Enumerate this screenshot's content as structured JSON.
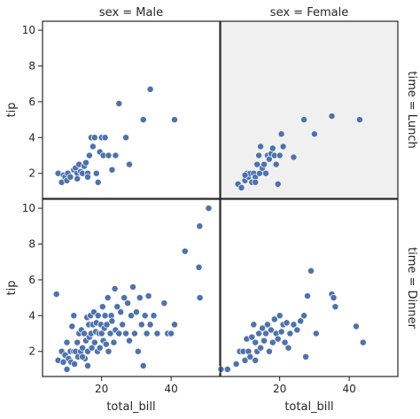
{
  "chart_data": {
    "type": "scatter",
    "xlabel": "total_bill",
    "ylabel": "tip",
    "xlim": [
      3,
      54
    ],
    "ylim": [
      0.6,
      10.5
    ],
    "xticks": [
      20,
      40
    ],
    "yticks": [
      2,
      4,
      6,
      8,
      10
    ],
    "xtick_labels": [
      "20",
      "40"
    ],
    "ytick_labels": [
      "2",
      "4",
      "6",
      "8",
      "10"
    ],
    "col_titles": [
      "sex = Male",
      "sex = Female"
    ],
    "row_titles": [
      "time = Lunch",
      "time = Dinner"
    ],
    "point_color": "#4c72b0",
    "highlight_bg": "#f0f0f0",
    "highlighted_panel": "lunch-female",
    "panels": [
      {
        "id": "lunch-male",
        "row": 0,
        "col": 0,
        "points": [
          [
            7.5,
            2.0
          ],
          [
            8.5,
            1.5
          ],
          [
            9.0,
            1.9
          ],
          [
            9.5,
            1.8
          ],
          [
            10.0,
            1.6
          ],
          [
            10.3,
            2.0
          ],
          [
            11.0,
            1.8
          ],
          [
            12.0,
            2.2
          ],
          [
            12.5,
            2.3
          ],
          [
            13.0,
            2.0
          ],
          [
            13.5,
            2.5
          ],
          [
            14.0,
            2.1
          ],
          [
            14.5,
            2.0
          ],
          [
            15.0,
            2.4
          ],
          [
            15.5,
            2.6
          ],
          [
            16.0,
            2.0
          ],
          [
            16.5,
            3.0
          ],
          [
            17.0,
            4.0
          ],
          [
            17.5,
            3.5
          ],
          [
            18.0,
            4.0
          ],
          [
            18.5,
            2.0
          ],
          [
            19.0,
            1.5
          ],
          [
            19.5,
            3.2
          ],
          [
            20.0,
            4.0
          ],
          [
            20.5,
            3.0
          ],
          [
            21.0,
            4.0
          ],
          [
            22.0,
            3.0
          ],
          [
            23.0,
            2.2
          ],
          [
            24.0,
            3.0
          ],
          [
            25.0,
            5.9
          ],
          [
            27.0,
            4.0
          ],
          [
            28.0,
            2.5
          ],
          [
            32.0,
            5.0
          ],
          [
            34.0,
            6.7
          ],
          [
            41.0,
            5.0
          ],
          [
            16.0,
            1.8
          ],
          [
            13.0,
            1.7
          ]
        ]
      },
      {
        "id": "lunch-female",
        "row": 0,
        "col": 1,
        "points": [
          [
            8.0,
            1.4
          ],
          [
            9.0,
            1.2
          ],
          [
            10.0,
            1.6
          ],
          [
            10.5,
            2.0
          ],
          [
            11.0,
            1.8
          ],
          [
            11.5,
            2.0
          ],
          [
            12.0,
            1.5
          ],
          [
            12.5,
            2.0
          ],
          [
            13.0,
            1.8
          ],
          [
            13.5,
            2.5
          ],
          [
            14.0,
            3.0
          ],
          [
            14.2,
            2.0
          ],
          [
            14.5,
            3.5
          ],
          [
            15.0,
            2.3
          ],
          [
            15.5,
            2.5
          ],
          [
            16.0,
            2.0
          ],
          [
            16.5,
            3.0
          ],
          [
            17.0,
            2.8
          ],
          [
            17.5,
            3.1
          ],
          [
            18.0,
            3.4
          ],
          [
            18.5,
            3.0
          ],
          [
            19.0,
            2.5
          ],
          [
            19.5,
            1.4
          ],
          [
            20.0,
            3.0
          ],
          [
            20.5,
            4.2
          ],
          [
            21.0,
            3.5
          ],
          [
            24.0,
            2.9
          ],
          [
            27.0,
            5.0
          ],
          [
            30.0,
            4.2
          ],
          [
            35.0,
            5.2
          ],
          [
            43.0,
            5.0
          ],
          [
            13.0,
            1.5
          ],
          [
            10.0,
            1.9
          ]
        ]
      },
      {
        "id": "dinner-male",
        "row": 1,
        "col": 0,
        "points": [
          [
            7.0,
            5.2
          ],
          [
            7.5,
            1.5
          ],
          [
            8.5,
            2.0
          ],
          [
            9.0,
            1.4
          ],
          [
            9.5,
            1.8
          ],
          [
            10.0,
            2.5
          ],
          [
            10.5,
            1.6
          ],
          [
            11.0,
            2.0
          ],
          [
            11.2,
            1.4
          ],
          [
            11.5,
            3.4
          ],
          [
            12.0,
            2.0
          ],
          [
            12.2,
            1.3
          ],
          [
            12.5,
            2.0
          ],
          [
            13.0,
            2.5
          ],
          [
            13.2,
            1.7
          ],
          [
            13.5,
            3.0
          ],
          [
            14.0,
            2.0
          ],
          [
            14.2,
            3.2
          ],
          [
            14.5,
            2.2
          ],
          [
            15.0,
            3.0
          ],
          [
            15.2,
            1.6
          ],
          [
            15.5,
            2.6
          ],
          [
            15.8,
            3.9
          ],
          [
            16.0,
            2.0
          ],
          [
            16.3,
            3.5
          ],
          [
            16.5,
            2.8
          ],
          [
            16.8,
            4.0
          ],
          [
            17.0,
            3.0
          ],
          [
            17.2,
            2.2
          ],
          [
            17.5,
            3.5
          ],
          [
            17.8,
            4.2
          ],
          [
            18.0,
            2.5
          ],
          [
            18.3,
            3.1
          ],
          [
            18.5,
            3.6
          ],
          [
            18.8,
            2.0
          ],
          [
            19.0,
            4.0
          ],
          [
            19.3,
            3.0
          ],
          [
            19.5,
            2.2
          ],
          [
            19.8,
            3.5
          ],
          [
            20.0,
            3.0
          ],
          [
            20.3,
            4.5
          ],
          [
            20.5,
            2.6
          ],
          [
            20.8,
            3.3
          ],
          [
            21.0,
            4.0
          ],
          [
            21.3,
            2.4
          ],
          [
            21.5,
            3.5
          ],
          [
            21.8,
            5.0
          ],
          [
            22.0,
            2.0
          ],
          [
            22.5,
            3.0
          ],
          [
            22.8,
            4.0
          ],
          [
            23.0,
            3.7
          ],
          [
            23.5,
            2.5
          ],
          [
            23.8,
            5.5
          ],
          [
            24.0,
            3.2
          ],
          [
            24.5,
            4.5
          ],
          [
            25.0,
            3.0
          ],
          [
            25.5,
            4.2
          ],
          [
            26.0,
            3.5
          ],
          [
            26.5,
            5.0
          ],
          [
            27.0,
            3.0
          ],
          [
            27.5,
            4.7
          ],
          [
            28.0,
            2.6
          ],
          [
            28.5,
            4.0
          ],
          [
            29.0,
            5.6
          ],
          [
            29.5,
            3.0
          ],
          [
            30.0,
            4.2
          ],
          [
            30.5,
            2.0
          ],
          [
            31.0,
            5.0
          ],
          [
            31.5,
            3.5
          ],
          [
            32.0,
            1.2
          ],
          [
            32.5,
            4.0
          ],
          [
            33.0,
            3.0
          ],
          [
            33.5,
            5.1
          ],
          [
            34.0,
            3.5
          ],
          [
            35.0,
            4.0
          ],
          [
            36.0,
            3.0
          ],
          [
            38.0,
            4.7
          ],
          [
            39.0,
            3.0
          ],
          [
            40.0,
            3.0
          ],
          [
            41.0,
            3.5
          ],
          [
            44.0,
            7.6
          ],
          [
            48.0,
            6.7
          ],
          [
            48.3,
            5.0
          ],
          [
            48.2,
            9.0
          ],
          [
            50.8,
            10.0
          ],
          [
            12.0,
            4.0
          ],
          [
            10.0,
            1.0
          ],
          [
            16.0,
            1.2
          ],
          [
            14.5,
            1.7
          ]
        ]
      },
      {
        "id": "dinner-female",
        "row": 1,
        "col": 1,
        "points": [
          [
            3.1,
            1.0
          ],
          [
            5.0,
            1.0
          ],
          [
            7.5,
            1.3
          ],
          [
            8.5,
            2.0
          ],
          [
            9.5,
            2.0
          ],
          [
            10.0,
            1.5
          ],
          [
            10.5,
            2.7
          ],
          [
            11.0,
            2.0
          ],
          [
            11.5,
            1.7
          ],
          [
            12.0,
            2.8
          ],
          [
            12.5,
            3.5
          ],
          [
            13.0,
            2.5
          ],
          [
            13.5,
            2.0
          ],
          [
            14.0,
            3.0
          ],
          [
            14.5,
            2.2
          ],
          [
            15.0,
            3.3
          ],
          [
            15.5,
            2.6
          ],
          [
            16.0,
            3.0
          ],
          [
            16.5,
            3.5
          ],
          [
            17.0,
            2.0
          ],
          [
            17.5,
            3.2
          ],
          [
            18.0,
            2.5
          ],
          [
            18.5,
            3.8
          ],
          [
            19.0,
            3.0
          ],
          [
            19.5,
            2.7
          ],
          [
            20.0,
            4.0
          ],
          [
            20.5,
            3.1
          ],
          [
            21.0,
            3.5
          ],
          [
            21.5,
            2.5
          ],
          [
            22.0,
            3.6
          ],
          [
            22.5,
            2.2
          ],
          [
            23.0,
            3.0
          ],
          [
            24.0,
            3.5
          ],
          [
            25.0,
            3.2
          ],
          [
            26.0,
            3.7
          ],
          [
            27.0,
            4.0
          ],
          [
            27.5,
            1.7
          ],
          [
            28.0,
            5.1
          ],
          [
            29.0,
            6.5
          ],
          [
            30.5,
            3.0
          ],
          [
            35.0,
            5.2
          ],
          [
            35.5,
            5.0
          ],
          [
            36.0,
            4.5
          ],
          [
            42.0,
            3.4
          ],
          [
            44.0,
            2.5
          ],
          [
            17.0,
            2.0
          ],
          [
            13.0,
            1.5
          ]
        ]
      }
    ]
  }
}
